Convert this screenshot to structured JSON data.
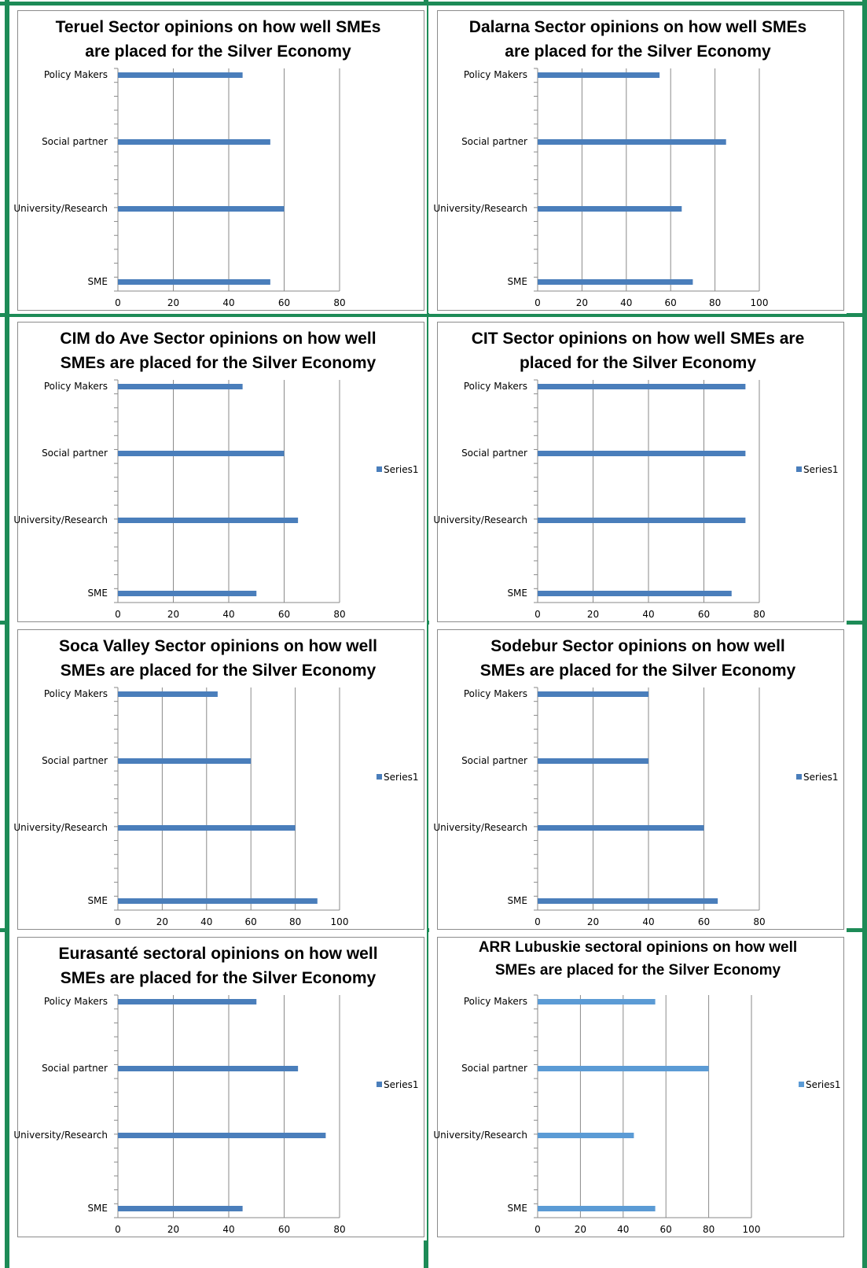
{
  "chart_data": [
    {
      "type": "bar",
      "title": "Teruel Sector opinions on how well SMEs are placed for the Silver Economy",
      "title_lines": [
        "Teruel Sector opinions on how well SMEs",
        "are placed for the Silver Economy"
      ],
      "categories": [
        "Policy Makers",
        "Social partner",
        "University/Research",
        "SME"
      ],
      "series": [
        {
          "values": [
            45,
            55,
            60,
            55
          ]
        }
      ],
      "xlim": [
        0,
        80
      ],
      "xticks": [
        0,
        20,
        40,
        60,
        80
      ],
      "legend": "",
      "grid": true,
      "color": "#4a7ebb"
    },
    {
      "type": "bar",
      "title": "Dalarna Sector opinions on how well SMEs are placed for the Silver Economy",
      "title_lines": [
        "Dalarna Sector opinions on how well SMEs",
        "are placed for the Silver Economy"
      ],
      "categories": [
        "Policy Makers",
        "Social partner",
        "University/Research",
        "SME"
      ],
      "series": [
        {
          "values": [
            55,
            85,
            65,
            70
          ]
        }
      ],
      "xlim": [
        0,
        100
      ],
      "xticks": [
        0,
        20,
        40,
        60,
        80,
        100
      ],
      "legend": "",
      "grid": true,
      "color": "#4a7ebb"
    },
    {
      "type": "bar",
      "title": "CIM do Ave Sector opinions on how well SMEs are placed for the Silver Economy",
      "title_lines": [
        "CIM do Ave Sector opinions on how well",
        "SMEs are placed for the Silver Economy"
      ],
      "categories": [
        "Policy Makers",
        "Social partner",
        "University/Research",
        "SME"
      ],
      "series": [
        {
          "name": "Series1",
          "values": [
            45,
            60,
            65,
            50
          ]
        }
      ],
      "xlim": [
        0,
        80
      ],
      "xticks": [
        0,
        20,
        40,
        60,
        80
      ],
      "legend": "right",
      "grid": true,
      "color": "#4a7ebb"
    },
    {
      "type": "bar",
      "title": "CIT Sector opinions on how well SMEs are placed for the Silver Economy",
      "title_lines": [
        "CIT Sector opinions on how well SMEs are",
        "placed for the Silver Economy"
      ],
      "categories": [
        "Policy Makers",
        "Social partner",
        "University/Research",
        "SME"
      ],
      "series": [
        {
          "name": "Series1",
          "values": [
            75,
            75,
            75,
            70
          ]
        }
      ],
      "xlim": [
        0,
        80
      ],
      "xticks": [
        0,
        20,
        40,
        60,
        80
      ],
      "legend": "right",
      "grid": true,
      "color": "#4a7ebb"
    },
    {
      "type": "bar",
      "title": "Soca Valley Sector opinions on how well SMEs are placed for the Silver Economy",
      "title_lines": [
        "Soca Valley Sector opinions on how well",
        "SMEs are placed for the Silver Economy"
      ],
      "categories": [
        "Policy Makers",
        "Social partner",
        "University/Research",
        "SME"
      ],
      "series": [
        {
          "name": "Series1",
          "values": [
            45,
            60,
            80,
            90
          ]
        }
      ],
      "xlim": [
        0,
        100
      ],
      "xticks": [
        0,
        20,
        40,
        60,
        80,
        100
      ],
      "legend": "right",
      "grid": true,
      "color": "#4a7ebb"
    },
    {
      "type": "bar",
      "title": "Sodebur Sector opinions on how well SMEs are placed for the Silver Economy",
      "title_lines": [
        "Sodebur Sector opinions on how well",
        "SMEs are placed for the Silver Economy"
      ],
      "categories": [
        "Policy Makers",
        "Social partner",
        "University/Research",
        "SME"
      ],
      "series": [
        {
          "name": "Series1",
          "values": [
            40,
            40,
            60,
            65
          ]
        }
      ],
      "xlim": [
        0,
        80
      ],
      "xticks": [
        0,
        20,
        40,
        60,
        80
      ],
      "legend": "right",
      "grid": true,
      "color": "#4a7ebb"
    },
    {
      "type": "bar",
      "title": "Eurasanté sectoral opinions on how well SMEs are placed for the Silver Economy",
      "title_lines": [
        "Eurasanté sectoral opinions on how well",
        "SMEs are placed for the Silver Economy"
      ],
      "categories": [
        "Policy Makers",
        "Social partner",
        "University/Research",
        "SME"
      ],
      "series": [
        {
          "name": "Series1",
          "values": [
            50,
            65,
            75,
            45
          ]
        }
      ],
      "xlim": [
        0,
        80
      ],
      "xticks": [
        0,
        20,
        40,
        60,
        80
      ],
      "legend": "right",
      "grid": true,
      "color": "#4a7ebb"
    },
    {
      "type": "bar",
      "title": "ARR Lubuskie sectoral opinions on how well SMEs are placed for the Silver Economy",
      "title_lines": [
        "ARR Lubuskie sectoral opinions on how well",
        "SMEs are placed for the Silver Economy"
      ],
      "categories": [
        "Policy Makers",
        "Social partner",
        "University/Research",
        "SME"
      ],
      "series": [
        {
          "name": "Series1",
          "values": [
            55,
            80,
            45,
            55
          ]
        }
      ],
      "xlim": [
        0,
        100
      ],
      "xticks": [
        0,
        20,
        40,
        60,
        80,
        100
      ],
      "legend": "right",
      "grid": true,
      "color": "#5b9bd5"
    }
  ]
}
